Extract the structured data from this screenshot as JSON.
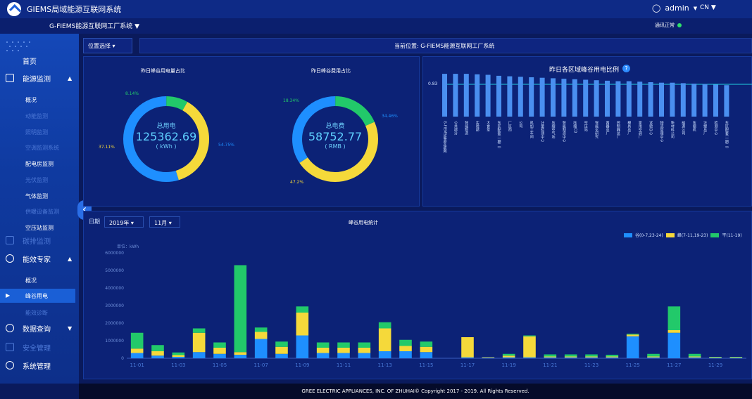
{
  "header": {
    "app_title": "GIEMS局域能源互联网系统",
    "user_name": "admin",
    "language": "CN",
    "factory_select": "G-FIEMS能源互联网工厂系统",
    "status_text": "通讯正常"
  },
  "sidebar": {
    "home": "首页",
    "energy_monitor": "能源监测",
    "energy_monitor_items": [
      "概况",
      "动能监测",
      "照明监测",
      "空调监测系统",
      "配电房监测",
      "光伏监测",
      "气体监测",
      "供暖设备监测",
      "空压站监测"
    ],
    "carbon": "碳排监测",
    "efficiency_expert": "能效专家",
    "efficiency_items": [
      "概况",
      "峰谷用电",
      "能效诊断"
    ],
    "data_query": "数据查询",
    "security": "安全管理",
    "system": "系统管理",
    "collapse_icon": "‹"
  },
  "location": {
    "select_label": "位置选择",
    "current": "当前位置: G-FIEMS能源互联网工厂系统"
  },
  "donut_power": {
    "title": "昨日峰谷用电量占比",
    "center_label": "总用电",
    "center_value": "125362.69",
    "center_unit": "( kWh )",
    "pct_green": "8.14%",
    "pct_yellow": "37.11%",
    "pct_blue": "54.75%"
  },
  "donut_cost": {
    "title": "昨日峰谷费用占比",
    "center_label": "总电费",
    "center_value": "58752.77",
    "center_unit": "( RMB )",
    "pct_green": "18.34%",
    "pct_yellow": "47.2%",
    "pct_blue": "34.46%"
  },
  "region_chart": {
    "title": "昨日各区域峰谷用电比例",
    "help_icon": "?",
    "ref_value": "0.83"
  },
  "peak_chart": {
    "date_label": "日期",
    "year": "2019年",
    "month": "11月",
    "title": "峰谷用电统计",
    "unit_label": "单位：kWh",
    "legend": [
      "谷(0-7,23-24)",
      "峰(7-11,19-23)",
      "平(11-19)"
    ]
  },
  "colors": {
    "blue": "#1e8fff",
    "yellow": "#f5d93a",
    "green": "#22c96a"
  },
  "chart_data": [
    {
      "type": "bar",
      "title": "昨日各区域峰谷用电比例",
      "categories": [
        "G-FIEMS能源互联网工厂系统",
        "公共部分",
        "智能制造",
        "实验部",
        "大食堂",
        "东区配套(一期二)",
        "厂区西",
        "公司",
        "机加工车间",
        "计量检测中心",
        "压缩空气站",
        "智能制造中心",
        "压缩CD",
        "空压站",
        "智能化研究",
        "两器总厂",
        "控制器总厂",
        "模具总厂",
        "家用空调厂",
        "试验中心",
        "物流管理中心",
        "新材料公司",
        "能源公司",
        "压缩机",
        "注塑总厂",
        "检测中心",
        "东区配套(一期二)"
      ],
      "values": [
        0.87,
        0.87,
        0.87,
        0.86,
        0.85,
        0.83,
        0.82,
        0.81,
        0.8,
        0.79,
        0.78,
        0.77,
        0.76,
        0.75,
        0.74,
        0.73,
        0.72,
        0.72,
        0.71,
        0.7,
        0.69,
        0.69,
        0.68,
        0.67,
        0.66,
        0.65,
        0.64
      ],
      "ylim": [
        0,
        1
      ]
    },
    {
      "type": "bar",
      "title": "峰谷用电统计",
      "xlabel": "",
      "ylabel": "单位：kWh",
      "categories": [
        "11-01",
        "11-02",
        "11-03",
        "11-04",
        "11-05",
        "11-06",
        "11-07",
        "11-08",
        "11-09",
        "11-10",
        "11-11",
        "11-12",
        "11-13",
        "11-14",
        "11-15",
        "11-16",
        "11-17",
        "11-18",
        "11-19",
        "11-20",
        "11-21",
        "11-22",
        "11-23",
        "11-24",
        "11-25",
        "11-26",
        "11-27",
        "11-28",
        "11-29",
        "11-30"
      ],
      "tick_labels": [
        "11-01",
        "11-03",
        "11-05",
        "11-07",
        "11-09",
        "11-11",
        "11-13",
        "11-15",
        "11-17",
        "11-19",
        "11-21",
        "11-23",
        "11-25",
        "11-27",
        "11-29"
      ],
      "y_ticks": [
        "0",
        "1000000",
        "2000000",
        "3000000",
        "4000000",
        "5000000",
        "6000000"
      ],
      "series": [
        {
          "name": "谷(0-7,23-24)",
          "values": [
            300000,
            150000,
            80000,
            350000,
            250000,
            200000,
            1100000,
            250000,
            1300000,
            300000,
            300000,
            300000,
            400000,
            400000,
            350000,
            0,
            50000,
            30000,
            50000,
            50000,
            50000,
            50000,
            50000,
            50000,
            1250000,
            50000,
            1450000,
            50000,
            30000,
            30000
          ]
        },
        {
          "name": "峰(7-11,19-23)",
          "values": [
            250000,
            250000,
            100000,
            1100000,
            350000,
            150000,
            400000,
            400000,
            1300000,
            300000,
            300000,
            300000,
            1300000,
            300000,
            300000,
            0,
            1150000,
            30000,
            100000,
            1200000,
            50000,
            50000,
            50000,
            50000,
            100000,
            50000,
            150000,
            50000,
            30000,
            30000
          ]
        },
        {
          "name": "平(11-19)",
          "values": [
            900000,
            350000,
            150000,
            250000,
            300000,
            4950000,
            250000,
            300000,
            350000,
            300000,
            300000,
            300000,
            350000,
            350000,
            300000,
            0,
            0,
            0,
            100000,
            50000,
            120000,
            120000,
            120000,
            100000,
            50000,
            150000,
            1350000,
            150000,
            20000,
            20000
          ]
        }
      ],
      "ylim": [
        0,
        6000000
      ]
    }
  ]
}
